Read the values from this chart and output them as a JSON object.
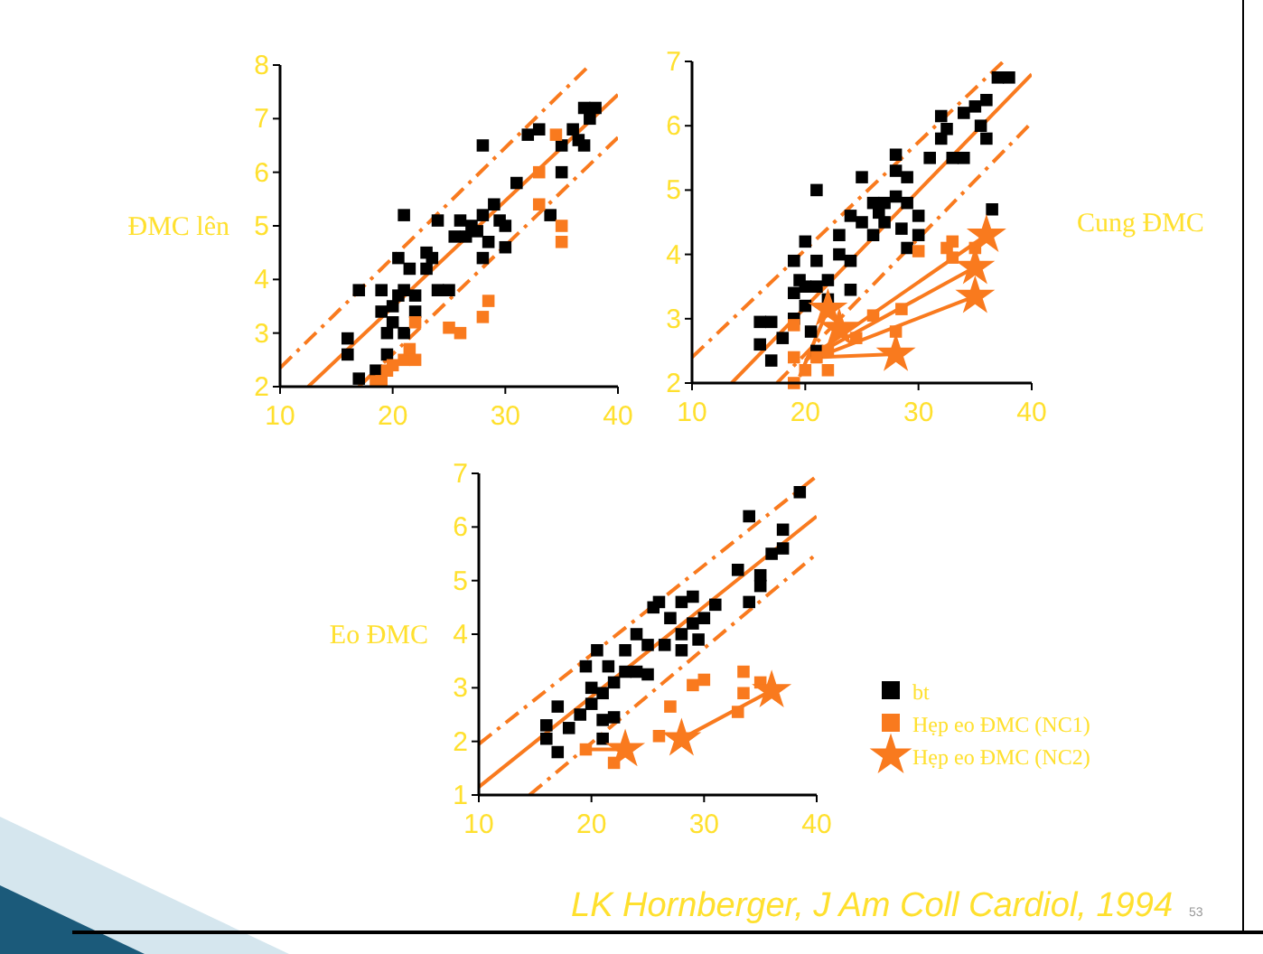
{
  "chart_data": [
    {
      "type": "scatter",
      "ylabel": "ĐMC lên",
      "xlim": [
        10,
        40
      ],
      "ylim": [
        2,
        8
      ],
      "xticks": [
        10,
        20,
        30,
        40
      ],
      "yticks": [
        2,
        3,
        4,
        5,
        6,
        7,
        8
      ],
      "grid": false,
      "legend": false,
      "series": [
        {
          "color": "#000000",
          "marker": "square",
          "x": [
            16,
            16,
            17,
            17,
            18.5,
            19,
            19,
            19.5,
            19.5,
            20,
            20,
            20.5,
            20.5,
            21,
            21,
            21,
            21.5,
            22,
            22,
            23,
            23,
            23.5,
            24,
            24,
            25,
            25.5,
            26,
            26.5,
            27,
            27.5,
            28,
            28,
            28,
            28.5,
            29,
            29.5,
            30,
            30,
            31,
            32,
            33,
            35,
            34,
            35,
            36,
            37,
            37,
            38,
            36.5,
            37.5
          ],
          "values": [
            2.9,
            2.6,
            3.8,
            2.15,
            2.3,
            3.8,
            3.4,
            3.0,
            2.6,
            3.5,
            3.2,
            4.4,
            3.7,
            3.8,
            3.0,
            5.2,
            4.2,
            3.7,
            3.4,
            4.5,
            4.2,
            4.4,
            5.1,
            3.8,
            3.8,
            4.8,
            5.1,
            4.8,
            5.0,
            4.9,
            6.5,
            5.2,
            4.4,
            4.7,
            5.4,
            5.1,
            4.6,
            5.0,
            5.8,
            6.7,
            6.8,
            6.0,
            5.2,
            6.5,
            6.8,
            7.2,
            6.5,
            7.2,
            6.6,
            7.0
          ]
        },
        {
          "color": "#f97a1e",
          "marker": "square",
          "x": [
            18.5,
            19,
            19.5,
            20,
            21,
            21.5,
            22,
            22,
            25,
            26,
            28,
            28.5,
            33,
            33,
            34.5,
            35,
            35
          ],
          "values": [
            2.1,
            2.1,
            2.3,
            2.4,
            2.5,
            2.7,
            2.5,
            3.2,
            3.1,
            3.0,
            3.3,
            3.6,
            5.4,
            6.0,
            6.7,
            4.7,
            5.0
          ]
        },
        {
          "type": "line",
          "color": "#f97a1e",
          "marker": "none",
          "line_style": "solid",
          "x": [
            12.5,
            40
          ],
          "values": [
            2,
            7.45
          ]
        },
        {
          "type": "line",
          "color": "#f97a1e",
          "marker": "none",
          "line_style": "dashed",
          "x": [
            10,
            37.5
          ],
          "values": [
            2.35,
            8
          ]
        },
        {
          "type": "line",
          "color": "#f97a1e",
          "marker": "none",
          "line_style": "dashed",
          "x": [
            17,
            40
          ],
          "values": [
            2,
            6.65
          ]
        }
      ]
    },
    {
      "type": "scatter",
      "ylabel": "Cung ĐMC",
      "xlim": [
        10,
        40
      ],
      "ylim": [
        2,
        7
      ],
      "xticks": [
        10,
        20,
        30,
        40
      ],
      "yticks": [
        2,
        3,
        4,
        5,
        6,
        7
      ],
      "grid": false,
      "legend": false,
      "series": [
        {
          "color": "#000000",
          "marker": "square",
          "x": [
            16,
            16,
            17,
            17,
            18,
            19,
            19,
            19,
            19.5,
            20,
            20,
            20,
            20.5,
            21,
            21,
            21,
            21,
            22,
            22,
            23,
            23,
            24,
            24,
            24,
            25,
            25,
            26,
            26,
            26.5,
            27,
            27,
            28,
            28,
            28,
            28.5,
            29,
            29,
            29,
            30,
            30,
            31,
            32,
            32,
            32.5,
            33,
            34,
            34,
            35,
            35.5,
            36,
            36,
            36.5,
            37,
            38
          ],
          "values": [
            2.95,
            2.6,
            2.35,
            2.95,
            2.7,
            3.9,
            3.4,
            3.0,
            3.6,
            4.2,
            3.5,
            3.2,
            2.8,
            3.9,
            3.5,
            5.0,
            2.5,
            3.6,
            3.3,
            4.0,
            4.3,
            4.6,
            3.9,
            3.45,
            4.5,
            5.2,
            4.8,
            4.3,
            4.65,
            4.8,
            4.5,
            5.3,
            5.55,
            4.9,
            4.4,
            5.2,
            4.1,
            4.8,
            4.6,
            4.3,
            5.5,
            6.15,
            5.8,
            5.95,
            5.5,
            5.5,
            6.2,
            6.3,
            6.0,
            5.8,
            6.4,
            4.7,
            6.75,
            6.75
          ]
        },
        {
          "color": "#f97a1e",
          "marker": "square",
          "x": [
            19,
            19,
            19,
            20,
            21,
            22,
            22,
            24.5,
            26,
            28,
            28.5,
            30,
            32.5,
            33,
            33,
            35
          ],
          "values": [
            2.9,
            2.4,
            2.0,
            2.2,
            2.4,
            2.2,
            2.5,
            2.7,
            3.05,
            2.8,
            3.15,
            4.05,
            4.1,
            4.2,
            3.95,
            4.1
          ]
        },
        {
          "color": "#f97a1e",
          "marker": "star",
          "x": [
            22,
            23,
            28,
            35,
            35,
            36
          ],
          "values": [
            3.15,
            2.85,
            2.45,
            3.35,
            3.8,
            4.3
          ]
        },
        {
          "type": "line",
          "color": "#f97a1e",
          "marker": "none",
          "line_style": "solid",
          "x": [
            13.5,
            40
          ],
          "values": [
            2,
            6.8
          ]
        },
        {
          "type": "line",
          "color": "#f97a1e",
          "marker": "none",
          "line_style": "dashed",
          "x": [
            10,
            37.5
          ],
          "values": [
            2.4,
            7
          ]
        },
        {
          "type": "line",
          "color": "#f97a1e",
          "marker": "none",
          "line_style": "dashed",
          "x": [
            17.5,
            40
          ],
          "values": [
            2,
            6.05
          ]
        },
        {
          "type": "line",
          "color": "#f97a1e",
          "marker": "none",
          "line_style": "solid",
          "x": [
            19.5,
            22
          ],
          "values": [
            2.1,
            3.15
          ]
        },
        {
          "type": "line",
          "color": "#f97a1e",
          "marker": "none",
          "line_style": "solid",
          "x": [
            21,
            28
          ],
          "values": [
            2.4,
            2.45
          ]
        },
        {
          "type": "line",
          "color": "#f97a1e",
          "marker": "none",
          "line_style": "solid",
          "x": [
            21,
            35
          ],
          "values": [
            2.4,
            3.35
          ]
        },
        {
          "type": "line",
          "color": "#f97a1e",
          "marker": "none",
          "line_style": "solid",
          "x": [
            21.5,
            35
          ],
          "values": [
            2.5,
            3.8
          ]
        },
        {
          "type": "line",
          "color": "#f97a1e",
          "marker": "none",
          "line_style": "solid",
          "x": [
            20,
            36
          ],
          "values": [
            2.35,
            4.3
          ]
        }
      ]
    },
    {
      "type": "scatter",
      "ylabel": "Eo ĐMC",
      "xlim": [
        10,
        40
      ],
      "ylim": [
        1,
        7
      ],
      "xticks": [
        10,
        20,
        30,
        40
      ],
      "yticks": [
        1,
        2,
        3,
        4,
        5,
        6,
        7
      ],
      "grid": false,
      "legend": "right",
      "annotations": [
        "LK Hornberger, J Am Coll Cardiol, 1994",
        "53"
      ],
      "series": [
        {
          "name": "bt",
          "color": "#000000",
          "marker": "square",
          "x": [
            16,
            16,
            17,
            17,
            18,
            19,
            19.5,
            20,
            20,
            20.5,
            21,
            21,
            21,
            21.5,
            22,
            22,
            23,
            23,
            24,
            24,
            25,
            25,
            25.5,
            26,
            26.5,
            27,
            28,
            28,
            28,
            29,
            29,
            29.5,
            30,
            31,
            33,
            34,
            34,
            35,
            35,
            36,
            37,
            37,
            38.5
          ],
          "values": [
            2.3,
            2.05,
            2.65,
            1.8,
            2.25,
            2.5,
            3.4,
            3.0,
            2.7,
            3.7,
            2.9,
            2.4,
            2.05,
            3.4,
            3.1,
            2.45,
            3.3,
            3.7,
            4.0,
            3.3,
            3.25,
            3.8,
            4.5,
            4.6,
            3.8,
            4.3,
            4.6,
            4.0,
            3.7,
            4.7,
            4.2,
            3.9,
            4.3,
            4.55,
            5.2,
            6.2,
            4.6,
            5.1,
            4.9,
            5.5,
            5.6,
            5.95,
            6.65
          ]
        },
        {
          "name": "Hẹp eo ĐMC (NC1)",
          "color": "#f97a1e",
          "marker": "square",
          "x": [
            19.5,
            22,
            26,
            27,
            29,
            30,
            33,
            33.5,
            33.5,
            35
          ],
          "values": [
            1.85,
            1.6,
            2.1,
            2.65,
            3.05,
            3.15,
            2.55,
            3.3,
            2.9,
            3.1
          ]
        },
        {
          "name": "Hẹp eo ĐMC (NC2)",
          "color": "#f97a1e",
          "marker": "star",
          "x": [
            23,
            28,
            36
          ],
          "values": [
            1.85,
            2.05,
            2.95
          ]
        },
        {
          "type": "line",
          "color": "#f97a1e",
          "marker": "none",
          "line_style": "solid",
          "x": [
            10,
            40
          ],
          "values": [
            1.15,
            6.2
          ]
        },
        {
          "type": "line",
          "color": "#f97a1e",
          "marker": "none",
          "line_style": "dashed",
          "x": [
            10,
            40
          ],
          "values": [
            1.95,
            6.95
          ]
        },
        {
          "type": "line",
          "color": "#f97a1e",
          "marker": "none",
          "line_style": "dashed",
          "x": [
            14.5,
            40
          ],
          "values": [
            1,
            5.5
          ]
        },
        {
          "type": "line",
          "color": "#f97a1e",
          "marker": "none",
          "line_style": "solid",
          "x": [
            19.5,
            23
          ],
          "values": [
            1.85,
            1.85
          ]
        },
        {
          "type": "line",
          "color": "#f97a1e",
          "marker": "none",
          "line_style": "solid",
          "x": [
            28,
            36
          ],
          "values": [
            2.05,
            2.95
          ]
        }
      ]
    }
  ]
}
